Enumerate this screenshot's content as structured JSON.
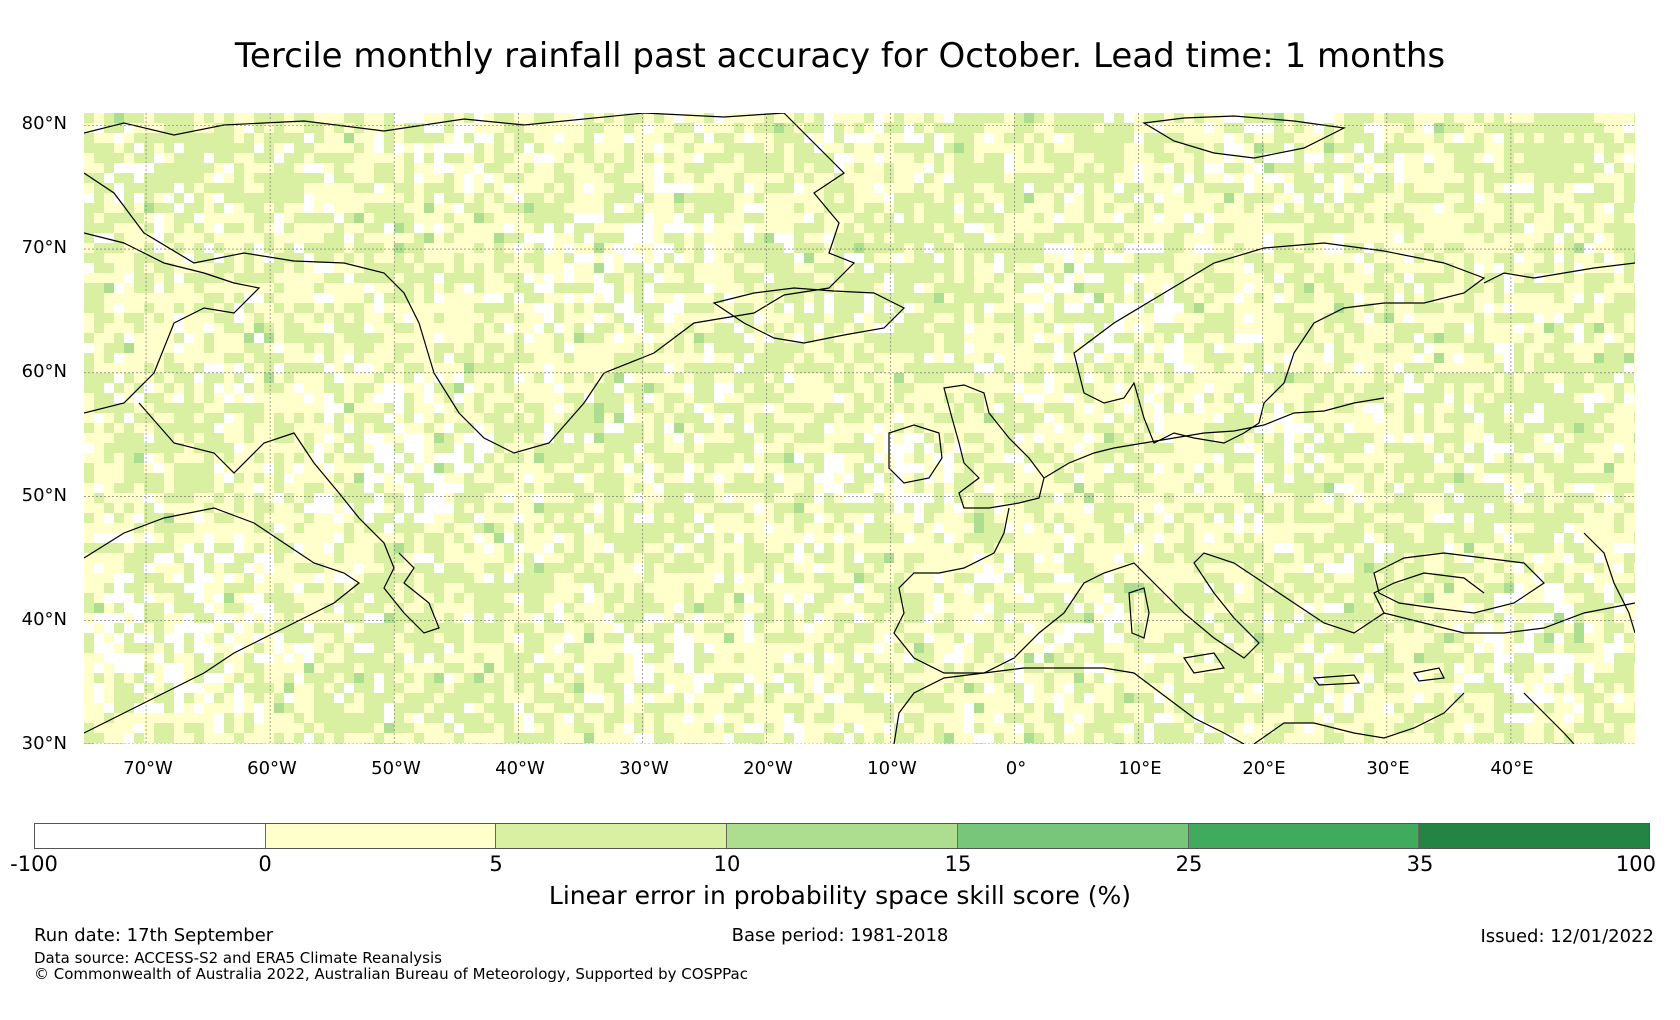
{
  "title": "Tercile monthly rainfall past accuracy for October. Lead time: 1 months",
  "map": {
    "extent": {
      "lon_min": -75,
      "lon_max": 50,
      "lat_min": 30,
      "lat_max": 81
    },
    "lat_labels": [
      "80°N",
      "70°N",
      "60°N",
      "50°N",
      "40°N",
      "30°N"
    ],
    "lon_labels": [
      "70°W",
      "60°W",
      "50°W",
      "40°W",
      "30°W",
      "20°W",
      "10°W",
      "0°",
      "10°E",
      "20°E",
      "30°E",
      "40°E"
    ],
    "lat_values": [
      80,
      70,
      60,
      50,
      40,
      30
    ],
    "lon_values": [
      -70,
      -60,
      -50,
      -40,
      -30,
      -20,
      -10,
      0,
      10,
      20,
      30,
      40
    ]
  },
  "colorbar": {
    "label": "Linear error in probability space skill score (%)",
    "ticks": [
      "-100",
      "0",
      "5",
      "10",
      "15",
      "25",
      "35",
      "100"
    ],
    "colors": [
      "#ffffff",
      "#ffffcc",
      "#d9f0a3",
      "#addd8e",
      "#78c679",
      "#41ab5d",
      "#238443"
    ]
  },
  "footer": {
    "run_date": "Run date: 17th September",
    "base_period": "Base period: 1981-2018",
    "issued": "Issued: 12/01/2022",
    "data_source": "Data source: ACCESS-S2 and ERA5 Climate Reanalysis",
    "copyright": "© Commonwealth of Australia 2022, Australian Bureau of Meteorology, Supported by COSPPac"
  }
}
